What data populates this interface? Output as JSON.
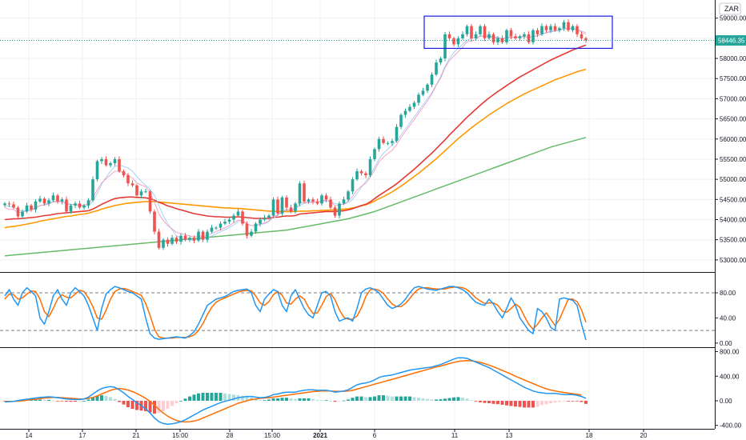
{
  "currency": "ZAR",
  "price_scale": {
    "top_label": "5",
    "ticks": [
      "59000.00",
      "58500.00",
      "58000.00",
      "57500.00",
      "57000.00",
      "56500.00",
      "56000.00",
      "55500.00",
      "55000.00",
      "54500.00",
      "54000.00",
      "53500.00",
      "53000.00"
    ],
    "last_price": "58446.35"
  },
  "stoch_scale": {
    "ticks": [
      "80.00",
      "40.00",
      "0.00"
    ]
  },
  "macd_scale": {
    "ticks": [
      "800.00",
      "400.00",
      "0.00",
      "-400.00"
    ]
  },
  "time_labels": [
    {
      "label": "14",
      "bold": false
    },
    {
      "label": "17",
      "bold": false
    },
    {
      "label": "21",
      "bold": false
    },
    {
      "label": "15:00",
      "bold": false
    },
    {
      "label": "28",
      "bold": false
    },
    {
      "label": "15:00",
      "bold": false
    },
    {
      "label": "2021",
      "bold": true
    },
    {
      "label": "6",
      "bold": false
    },
    {
      "label": "11",
      "bold": false
    },
    {
      "label": "13",
      "bold": false
    },
    {
      "label": "18",
      "bold": false
    },
    {
      "label": "20",
      "bold": false
    }
  ],
  "chart_data": {
    "type": "candlestick",
    "price_range": [
      52700,
      59450
    ],
    "closes": [
      54400,
      54380,
      54300,
      54080,
      54200,
      54350,
      54250,
      54450,
      54520,
      54400,
      54480,
      54600,
      54450,
      54500,
      54200,
      54350,
      54400,
      54300,
      54350,
      54480,
      55000,
      55450,
      55500,
      55350,
      55400,
      55500,
      55200,
      55100,
      54900,
      54850,
      54600,
      54700,
      54700,
      54200,
      53700,
      53300,
      53500,
      53400,
      53550,
      53450,
      53600,
      53500,
      53550,
      53480,
      53700,
      53500,
      53700,
      53800,
      53800,
      53900,
      53950,
      54000,
      54100,
      54200,
      53900,
      53600,
      53700,
      53900,
      54000,
      54050,
      54100,
      54500,
      54150,
      54550,
      54300,
      54200,
      54400,
      54900,
      54450,
      54500,
      54450,
      54400,
      54600,
      54500,
      54300,
      54100,
      54400,
      54500,
      54700,
      55000,
      55200,
      55150,
      55100,
      55500,
      55750,
      56000,
      55900,
      55900,
      55950,
      56300,
      56600,
      56700,
      56800,
      56900,
      57100,
      57200,
      57350,
      57600,
      57900,
      58000,
      58600,
      58500,
      58350,
      58500,
      58600,
      58800,
      58500,
      58600,
      58800,
      58500,
      58600,
      58400,
      58500,
      58400,
      58700,
      58550,
      58500,
      58550,
      58600,
      58400,
      58700,
      58600,
      58800,
      58700,
      58800,
      58700,
      58750,
      58900,
      58700,
      58800,
      58600,
      58500,
      58446
    ],
    "ema_fast": [
      54300,
      54250,
      54250,
      54180,
      54180,
      54220,
      54230,
      54290,
      54350,
      54360,
      54390,
      54440,
      54440,
      54450,
      54380,
      54370,
      54380,
      54360,
      54360,
      54390,
      54540,
      54740,
      54910,
      55010,
      55110,
      55200,
      55200,
      55170,
      55100,
      55030,
      54910,
      54860,
      54820,
      54660,
      54430,
      54140,
      53980,
      53850,
      53770,
      53680,
      53660,
      53620,
      53600,
      53570,
      53600,
      53580,
      53610,
      53660,
      53700,
      53750,
      53800,
      53850,
      53920,
      53990,
      53970,
      53890,
      53850,
      53860,
      53890,
      53920,
      53960,
      54090,
      54110,
      54210,
      54230,
      54220,
      54260,
      54410,
      54420,
      54440,
      54440,
      54430,
      54470,
      54480,
      54440,
      54350,
      54360,
      54390,
      54460,
      54580,
      54730,
      54830,
      54900,
      55050,
      55230,
      55430,
      55550,
      55640,
      55720,
      55860,
      56040,
      56190,
      56340,
      56480,
      56640,
      56790,
      56940,
      57120,
      57330,
      57510,
      57770,
      57950,
      58060,
      58170,
      58280,
      58410,
      58430,
      58470,
      58560,
      58540,
      58550,
      58510,
      58510,
      58480,
      58530,
      58530,
      58520,
      58530,
      58550,
      58510,
      58550,
      58560,
      58610,
      58640,
      58680,
      58690,
      58700,
      58750,
      58740,
      58750,
      58710,
      58650,
      58600
    ],
    "sma_fast": [
      54350,
      54330,
      54300,
      54240,
      54210,
      54230,
      54240,
      54300,
      54340,
      54380,
      54400,
      54450,
      54470,
      54450,
      54430,
      54380,
      54370,
      54350,
      54330,
      54350,
      54450,
      54650,
      54880,
      55050,
      55200,
      55320,
      55350,
      55320,
      55280,
      55200,
      55070,
      54950,
      54850,
      54750,
      54600,
      54350,
      54100,
      53900,
      53750,
      53600,
      53550,
      53500,
      53500,
      53480,
      53520,
      53520,
      53550,
      53600,
      53650,
      53700,
      53750,
      53800,
      53870,
      53950,
      53950,
      53900,
      53850,
      53850,
      53880,
      53900,
      53950,
      54050,
      54100,
      54200,
      54250,
      54250,
      54270,
      54350,
      54400,
      54420,
      54430,
      54440,
      54450,
      54470,
      54450,
      54400,
      54380,
      54380,
      54420,
      54500,
      54650,
      54800,
      54950,
      55100,
      55300,
      55500,
      55650,
      55750,
      55850,
      55950,
      56100,
      56250,
      56400,
      56550,
      56700,
      56850,
      57000,
      57150,
      57350,
      57550,
      57800,
      58000,
      58150,
      58250,
      58350,
      58450,
      58500,
      58520,
      58550,
      58560,
      58560,
      58540,
      58520,
      58500,
      58510,
      58520,
      58520,
      58530,
      58540,
      58530,
      58540,
      58560,
      58600,
      58630,
      58660,
      58680,
      58700,
      58730,
      58740,
      58740,
      58720,
      58680,
      58640
    ],
    "ema_mid": [
      54000,
      54010,
      54020,
      54020,
      54030,
      54040,
      54050,
      54060,
      54080,
      54100,
      54110,
      54130,
      54150,
      54160,
      54170,
      54180,
      54190,
      54200,
      54210,
      54220,
      54260,
      54320,
      54380,
      54430,
      54480,
      54520,
      54540,
      54550,
      54560,
      54560,
      54550,
      54550,
      54540,
      54520,
      54480,
      54430,
      54390,
      54340,
      54310,
      54270,
      54240,
      54210,
      54180,
      54150,
      54130,
      54110,
      54090,
      54080,
      54070,
      54070,
      54060,
      54060,
      54060,
      54070,
      54060,
      54050,
      54040,
      54030,
      54030,
      54030,
      54030,
      54060,
      54060,
      54080,
      54090,
      54090,
      54100,
      54140,
      54150,
      54160,
      54170,
      54180,
      54190,
      54200,
      54200,
      54200,
      54210,
      54220,
      54240,
      54270,
      54310,
      54350,
      54380,
      54440,
      54520,
      54600,
      54670,
      54740,
      54810,
      54890,
      54980,
      55070,
      55160,
      55250,
      55350,
      55450,
      55550,
      55650,
      55760,
      55870,
      55980,
      56100,
      56210,
      56320,
      56430,
      56540,
      56640,
      56740,
      56840,
      56930,
      57020,
      57100,
      57180,
      57250,
      57330,
      57400,
      57470,
      57540,
      57600,
      57660,
      57720,
      57780,
      57840,
      57900,
      57960,
      58010,
      58060,
      58110,
      58160,
      58210,
      58250,
      58290,
      58330
    ],
    "ema_slow": [
      53800,
      53820,
      53830,
      53850,
      53870,
      53890,
      53910,
      53930,
      53960,
      53980,
      54000,
      54020,
      54040,
      54060,
      54080,
      54090,
      54110,
      54130,
      54140,
      54160,
      54190,
      54220,
      54260,
      54290,
      54320,
      54350,
      54370,
      54390,
      54410,
      54420,
      54430,
      54440,
      54450,
      54450,
      54450,
      54440,
      54430,
      54420,
      54410,
      54400,
      54390,
      54380,
      54370,
      54360,
      54350,
      54340,
      54330,
      54320,
      54310,
      54300,
      54290,
      54290,
      54280,
      54280,
      54270,
      54260,
      54250,
      54240,
      54230,
      54220,
      54210,
      54210,
      54200,
      54200,
      54200,
      54200,
      54200,
      54210,
      54210,
      54210,
      54220,
      54220,
      54230,
      54230,
      54240,
      54240,
      54250,
      54260,
      54270,
      54290,
      54310,
      54340,
      54370,
      54410,
      54460,
      54520,
      54570,
      54630,
      54690,
      54760,
      54830,
      54910,
      54990,
      55070,
      55150,
      55240,
      55330,
      55420,
      55510,
      55610,
      55710,
      55810,
      55910,
      56010,
      56100,
      56190,
      56280,
      56360,
      56440,
      56520,
      56600,
      56670,
      56740,
      56810,
      56880,
      56940,
      57000,
      57060,
      57120,
      57170,
      57220,
      57270,
      57320,
      57370,
      57420,
      57470,
      57510,
      57550,
      57590,
      57630,
      57670,
      57700,
      57730
    ],
    "sma_slow": [
      53100,
      53110,
      53120,
      53130,
      53140,
      53150,
      53160,
      53170,
      53180,
      53190,
      53200,
      53210,
      53220,
      53230,
      53240,
      53250,
      53260,
      53270,
      53280,
      53290,
      53300,
      53310,
      53320,
      53330,
      53340,
      53350,
      53360,
      53370,
      53380,
      53390,
      53400,
      53410,
      53420,
      53430,
      53440,
      53450,
      53460,
      53470,
      53480,
      53490,
      53500,
      53510,
      53520,
      53530,
      53540,
      53550,
      53560,
      53570,
      53580,
      53590,
      53600,
      53610,
      53620,
      53630,
      53640,
      53650,
      53660,
      53670,
      53680,
      53690,
      53700,
      53710,
      53720,
      53730,
      53740,
      53760,
      53780,
      53800,
      53820,
      53840,
      53860,
      53880,
      53900,
      53920,
      53940,
      53960,
      53980,
      54000,
      54020,
      54050,
      54080,
      54110,
      54140,
      54170,
      54200,
      54240,
      54280,
      54320,
      54360,
      54400,
      54440,
      54480,
      54520,
      54560,
      54600,
      54640,
      54680,
      54720,
      54760,
      54800,
      54840,
      54880,
      54920,
      54960,
      55000,
      55040,
      55080,
      55120,
      55160,
      55200,
      55240,
      55280,
      55320,
      55360,
      55400,
      55440,
      55480,
      55520,
      55560,
      55600,
      55640,
      55680,
      55720,
      55760,
      55800,
      55830,
      55860,
      55890,
      55920,
      55950,
      55980,
      56010,
      56040
    ],
    "stoch_k": [
      75,
      85,
      70,
      60,
      80,
      88,
      82,
      75,
      40,
      30,
      50,
      75,
      85,
      70,
      60,
      80,
      88,
      82,
      75,
      60,
      40,
      20,
      55,
      78,
      85,
      90,
      88,
      85,
      82,
      80,
      75,
      70,
      40,
      15,
      8,
      6,
      7,
      8,
      9,
      10,
      9,
      8,
      12,
      18,
      30,
      45,
      60,
      65,
      70,
      72,
      74,
      78,
      82,
      84,
      85,
      86,
      80,
      60,
      50,
      70,
      78,
      85,
      82,
      60,
      50,
      75,
      85,
      70,
      55,
      45,
      40,
      60,
      80,
      82,
      75,
      50,
      35,
      38,
      40,
      35,
      55,
      80,
      86,
      88,
      85,
      80,
      70,
      60,
      55,
      58,
      62,
      70,
      80,
      88,
      90,
      88,
      86,
      85,
      84,
      86,
      88,
      90,
      90,
      88,
      85,
      80,
      72,
      65,
      62,
      60,
      70,
      62,
      50,
      40,
      55,
      72,
      60,
      40,
      30,
      20,
      15,
      55,
      50,
      40,
      25,
      20,
      70,
      72,
      70,
      68,
      60,
      30,
      5
    ],
    "stoch_d": [
      70,
      78,
      77,
      70,
      72,
      78,
      83,
      82,
      70,
      50,
      42,
      55,
      70,
      77,
      73,
      72,
      78,
      84,
      82,
      72,
      58,
      40,
      38,
      52,
      70,
      82,
      86,
      87,
      85,
      82,
      79,
      76,
      63,
      44,
      22,
      10,
      8,
      8,
      8,
      9,
      9,
      9,
      10,
      13,
      20,
      31,
      45,
      57,
      65,
      69,
      72,
      75,
      78,
      81,
      83,
      84,
      83,
      75,
      64,
      60,
      66,
      77,
      82,
      76,
      64,
      62,
      70,
      75,
      70,
      57,
      47,
      48,
      60,
      74,
      79,
      69,
      53,
      41,
      38,
      38,
      43,
      56,
      74,
      85,
      86,
      84,
      79,
      70,
      62,
      58,
      58,
      63,
      71,
      80,
      86,
      88,
      88,
      87,
      86,
      86,
      86,
      88,
      89,
      89,
      88,
      85,
      79,
      72,
      67,
      63,
      64,
      64,
      60,
      51,
      49,
      55,
      62,
      57,
      43,
      30,
      22,
      30,
      40,
      48,
      38,
      28,
      38,
      54,
      70,
      70,
      66,
      53,
      33
    ],
    "macd": [
      -20,
      -15,
      -10,
      5,
      15,
      25,
      35,
      45,
      55,
      60,
      65,
      60,
      50,
      40,
      30,
      25,
      20,
      20,
      30,
      60,
      110,
      160,
      200,
      220,
      230,
      220,
      180,
      130,
      70,
      20,
      -30,
      -80,
      -130,
      -200,
      -280,
      -340,
      -370,
      -380,
      -375,
      -360,
      -340,
      -310,
      -270,
      -230,
      -190,
      -150,
      -120,
      -90,
      -60,
      -30,
      -10,
      10,
      30,
      50,
      60,
      70,
      70,
      60,
      50,
      55,
      70,
      100,
      110,
      130,
      140,
      140,
      140,
      160,
      170,
      180,
      180,
      170,
      170,
      170,
      160,
      140,
      150,
      160,
      180,
      220,
      260,
      280,
      290,
      310,
      340,
      380,
      400,
      410,
      420,
      440,
      460,
      480,
      500,
      510,
      520,
      530,
      540,
      550,
      570,
      590,
      620,
      650,
      680,
      700,
      700,
      690,
      660,
      630,
      600,
      570,
      540,
      500,
      460,
      420,
      380,
      340,
      300,
      260,
      220,
      190,
      160,
      140,
      130,
      120,
      120,
      120,
      110,
      100,
      100,
      100,
      90,
      70,
      40
    ],
    "macd_signal": [
      -10,
      -10,
      -10,
      -5,
      0,
      10,
      20,
      25,
      35,
      45,
      50,
      55,
      55,
      50,
      45,
      40,
      35,
      30,
      30,
      40,
      55,
      80,
      110,
      140,
      170,
      190,
      200,
      190,
      175,
      150,
      120,
      80,
      40,
      -10,
      -70,
      -140,
      -200,
      -250,
      -290,
      -320,
      -340,
      -345,
      -340,
      -330,
      -310,
      -280,
      -250,
      -220,
      -190,
      -160,
      -130,
      -100,
      -70,
      -40,
      -20,
      0,
      20,
      30,
      40,
      45,
      50,
      60,
      70,
      80,
      90,
      100,
      110,
      120,
      130,
      140,
      150,
      155,
      160,
      160,
      160,
      155,
      155,
      155,
      160,
      170,
      190,
      210,
      230,
      250,
      270,
      290,
      310,
      330,
      350,
      370,
      390,
      410,
      430,
      450,
      470,
      490,
      510,
      530,
      550,
      565,
      585,
      605,
      625,
      640,
      650,
      655,
      650,
      640,
      625,
      605,
      580,
      555,
      525,
      495,
      465,
      435,
      400,
      370,
      340,
      310,
      280,
      250,
      220,
      195,
      175,
      160,
      145,
      135,
      125,
      115,
      105,
      95
    ],
    "macd_hist": [
      -10,
      -5,
      0,
      10,
      15,
      15,
      15,
      20,
      20,
      15,
      15,
      5,
      -5,
      -10,
      -15,
      -15,
      -15,
      -10,
      0,
      20,
      55,
      80,
      90,
      80,
      60,
      30,
      -20,
      -60,
      -105,
      -130,
      -150,
      -160,
      -170,
      -190,
      -210,
      -200,
      -170,
      -130,
      -85,
      -40,
      0,
      35,
      70,
      100,
      120,
      130,
      130,
      130,
      130,
      130,
      120,
      110,
      100,
      90,
      80,
      70,
      50,
      30,
      10,
      10,
      20,
      40,
      40,
      50,
      50,
      40,
      30,
      40,
      40,
      40,
      30,
      15,
      10,
      10,
      0,
      -15,
      -5,
      5,
      20,
      50,
      70,
      70,
      60,
      60,
      70,
      90,
      90,
      80,
      70,
      70,
      70,
      70,
      70,
      60,
      50,
      40,
      30,
      20,
      20,
      25,
      35,
      45,
      55,
      60,
      50,
      35,
      10,
      -10,
      -25,
      -35,
      -40,
      -50,
      -55,
      -65,
      -75,
      -85,
      -95,
      -100,
      -110,
      -110,
      -110,
      -100,
      -70,
      -55,
      -40,
      -30,
      -20,
      -10,
      -10,
      -10,
      -10,
      -20,
      -50
    ]
  },
  "colors": {
    "up": "#26a69a",
    "down": "#ef5350",
    "ema_fast": "#f48fb1",
    "sma_fast": "#90caf9",
    "ema_mid": "#e53935",
    "ema_slow": "#ff9800",
    "sma_slow": "#66bb6a",
    "stoch_k": "#2196f3",
    "stoch_d": "#ff6d00",
    "macd": "#2196f3",
    "macd_signal": "#ff6d00",
    "highlight_box": "#1a1ae6"
  }
}
